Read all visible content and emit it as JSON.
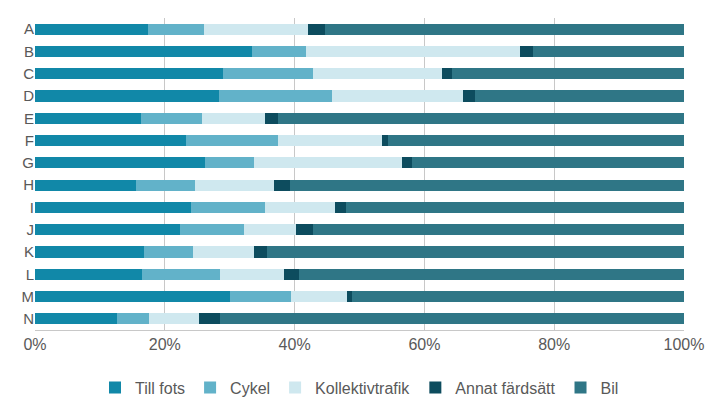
{
  "chart_data": {
    "type": "bar",
    "orientation": "horizontal",
    "stacked": true,
    "grid": true,
    "legend": "bottom",
    "categories": [
      "A",
      "B",
      "C",
      "D",
      "E",
      "F",
      "G",
      "H",
      "I",
      "J",
      "K",
      "L",
      "M",
      "N"
    ],
    "xlim": [
      0,
      100
    ],
    "xticks": [
      {
        "value": 0,
        "label": "0%"
      },
      {
        "value": 20,
        "label": "20%"
      },
      {
        "value": 40,
        "label": "40%"
      },
      {
        "value": 60,
        "label": "60%"
      },
      {
        "value": 80,
        "label": "80%"
      },
      {
        "value": 100,
        "label": "100%"
      }
    ],
    "series": [
      {
        "name": "Till fots",
        "color": "#1188a8",
        "values": [
          17.4,
          33.4,
          29.0,
          28.4,
          16.3,
          23.2,
          26.2,
          15.5,
          24.1,
          22.4,
          16.8,
          16.5,
          30.0,
          12.7
        ]
      },
      {
        "name": "Cykel",
        "color": "#62b2c9",
        "values": [
          8.7,
          8.4,
          13.8,
          17.3,
          9.5,
          14.3,
          7.6,
          9.2,
          11.4,
          9.8,
          7.6,
          12.0,
          9.5,
          4.8
        ]
      },
      {
        "name": "Kollektivtrafik",
        "color": "#cfe8ef",
        "values": [
          16.0,
          33.0,
          19.9,
          20.3,
          9.6,
          16.0,
          22.8,
          12.2,
          10.7,
          8.0,
          9.4,
          9.9,
          8.5,
          7.8
        ]
      },
      {
        "name": "Annat färdsätt",
        "color": "#0d4c5e",
        "values": [
          2.6,
          1.9,
          1.5,
          1.8,
          2.1,
          0.9,
          1.5,
          2.4,
          1.7,
          2.6,
          2.0,
          2.3,
          0.9,
          3.2
        ]
      },
      {
        "name": "Bil",
        "color": "#2f7686",
        "values": [
          55.3,
          23.3,
          35.8,
          32.2,
          62.5,
          45.6,
          41.9,
          60.7,
          52.1,
          57.2,
          64.2,
          59.3,
          51.1,
          71.5
        ]
      }
    ]
  }
}
